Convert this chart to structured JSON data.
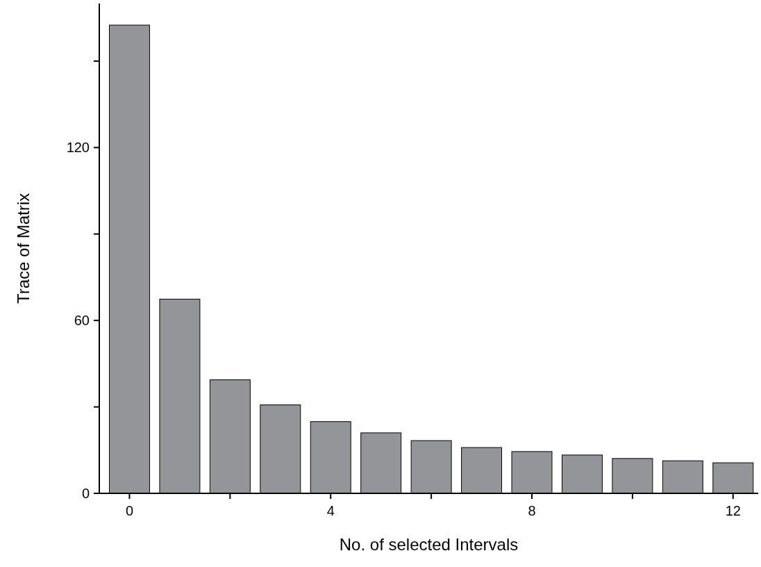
{
  "chart_data": {
    "type": "bar",
    "xlabel": "No. of selected Intervals",
    "ylabel": "Trace of Matrix",
    "x": [
      0,
      1,
      2,
      3,
      4,
      5,
      6,
      7,
      8,
      9,
      10,
      11,
      12
    ],
    "values": [
      162.5,
      67.4,
      39.4,
      30.7,
      24.9,
      21.0,
      18.3,
      15.9,
      14.5,
      13.3,
      12.1,
      11.3,
      10.6
    ],
    "color": "#939598",
    "xlim": [
      -0.6,
      12.5
    ],
    "xticks": [
      0,
      {
        "value": 2,
        "label": null
      },
      4,
      {
        "value": 6,
        "label": null
      },
      8,
      {
        "value": 10,
        "label": null
      },
      12
    ],
    "ylim": [
      0,
      170
    ],
    "yticks": [
      0,
      {
        "value": 30,
        "label": null
      },
      60,
      {
        "value": 90,
        "label": null
      },
      120,
      {
        "value": 150,
        "label": null
      }
    ],
    "grid": false
  }
}
